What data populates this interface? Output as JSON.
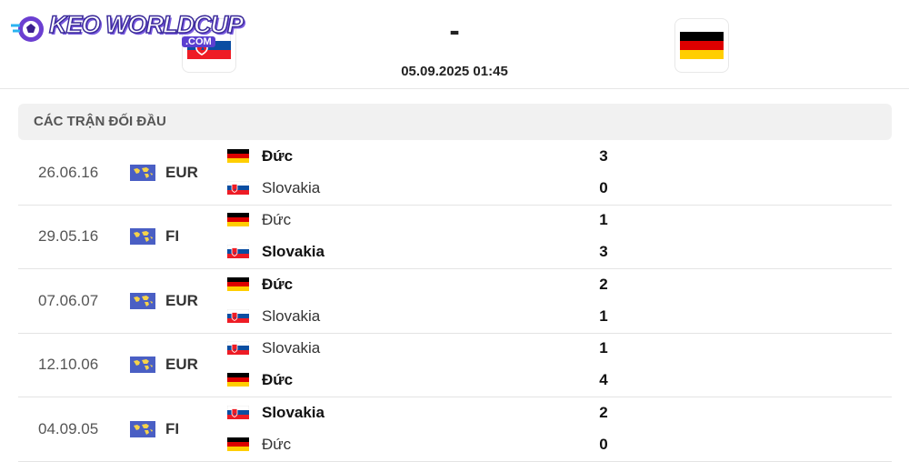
{
  "header": {
    "logo": "KEO WORLDCUP",
    "logo_suffix": ".COM",
    "score": "-",
    "datetime": "05.09.2025 01:45"
  },
  "section": {
    "title": "CÁC TRẬN ĐỐI ĐẦU"
  },
  "matches": [
    {
      "date": "26.06.16",
      "competition": "EUR",
      "teams": [
        {
          "name": "Đức",
          "score": 3
        },
        {
          "name": "Slovakia",
          "score": 0
        }
      ]
    },
    {
      "date": "29.05.16",
      "competition": "FI",
      "teams": [
        {
          "name": "Đức",
          "score": 1
        },
        {
          "name": "Slovakia",
          "score": 3
        }
      ]
    },
    {
      "date": "07.06.07",
      "competition": "EUR",
      "teams": [
        {
          "name": "Đức",
          "score": 2
        },
        {
          "name": "Slovakia",
          "score": 1
        }
      ]
    },
    {
      "date": "12.10.06",
      "competition": "EUR",
      "teams": [
        {
          "name": "Slovakia",
          "score": 1
        },
        {
          "name": "Đức",
          "score": 4
        }
      ]
    },
    {
      "date": "04.09.05",
      "competition": "FI",
      "teams": [
        {
          "name": "Slovakia",
          "score": 2
        },
        {
          "name": "Đức",
          "score": 0
        }
      ]
    }
  ]
}
